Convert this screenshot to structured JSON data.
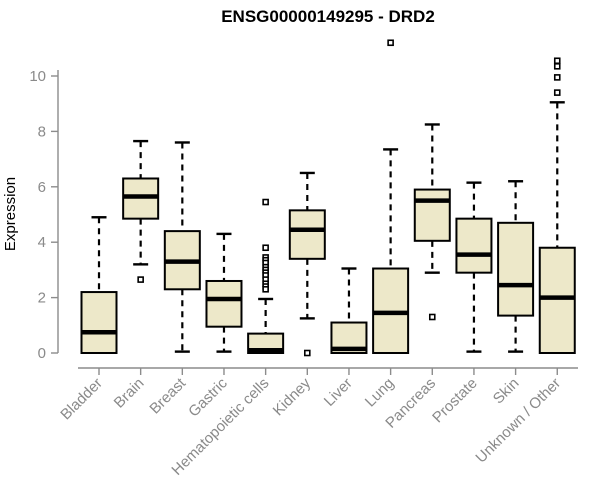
{
  "chart_data": {
    "type": "boxplot",
    "title": "ENSG00000149295 - DRD2",
    "ylabel": "Expression",
    "xlabel": "",
    "ylim": [
      0,
      11.2
    ],
    "yticks": [
      0,
      2,
      4,
      6,
      8,
      10
    ],
    "grid": false,
    "legend": "none",
    "categories": [
      "Bladder",
      "Brain",
      "Breast",
      "Gastric",
      "Hematopoietic cells",
      "Kidney",
      "Liver",
      "Lung",
      "Pancreas",
      "Prostate",
      "Skin",
      "Unknown / Other"
    ],
    "boxes": [
      {
        "category": "Bladder",
        "min": 0,
        "q1": 0,
        "median": 0.75,
        "q3": 2.2,
        "max": 4.9,
        "outliers": []
      },
      {
        "category": "Brain",
        "min": 3.2,
        "q1": 4.85,
        "median": 5.65,
        "q3": 6.3,
        "max": 7.65,
        "outliers": [
          2.65
        ]
      },
      {
        "category": "Breast",
        "min": 0.05,
        "q1": 2.3,
        "median": 3.3,
        "q3": 4.4,
        "max": 7.6,
        "outliers": []
      },
      {
        "category": "Gastric",
        "min": 0.05,
        "q1": 0.95,
        "median": 1.95,
        "q3": 2.6,
        "max": 4.3,
        "outliers": []
      },
      {
        "category": "Hematopoietic cells",
        "min": 0,
        "q1": 0,
        "median": 0.1,
        "q3": 0.7,
        "max": 1.95,
        "outliers": [
          5.45,
          3.8,
          3.45,
          3.35,
          3.25,
          3.1,
          3.0,
          2.9,
          2.8,
          2.65,
          2.5,
          2.4,
          2.3
        ]
      },
      {
        "category": "Kidney",
        "min": 1.25,
        "q1": 3.4,
        "median": 4.45,
        "q3": 5.15,
        "max": 6.5,
        "outliers": [
          0
        ]
      },
      {
        "category": "Liver",
        "min": 0,
        "q1": 0,
        "median": 0.15,
        "q3": 1.1,
        "max": 3.05,
        "outliers": []
      },
      {
        "category": "Lung",
        "min": 0,
        "q1": 0,
        "median": 1.45,
        "q3": 3.05,
        "max": 7.35,
        "outliers": [
          11.2
        ]
      },
      {
        "category": "Pancreas",
        "min": 2.9,
        "q1": 4.05,
        "median": 5.5,
        "q3": 5.9,
        "max": 8.25,
        "outliers": [
          1.3
        ]
      },
      {
        "category": "Prostate",
        "min": 0.05,
        "q1": 2.9,
        "median": 3.55,
        "q3": 4.85,
        "max": 6.15,
        "outliers": []
      },
      {
        "category": "Skin",
        "min": 0.05,
        "q1": 1.35,
        "median": 2.45,
        "q3": 4.7,
        "max": 6.2,
        "outliers": []
      },
      {
        "category": "Unknown / Other",
        "min": 0,
        "q1": 0,
        "median": 2.0,
        "q3": 3.8,
        "max": 9.05,
        "outliers": [
          10.55,
          10.35,
          9.95,
          9.4
        ]
      }
    ],
    "colors": {
      "box_fill": "#EDE8C9",
      "box_border": "#000000",
      "median": "#000000",
      "whisker": "#000000",
      "outlier_stroke": "#000000",
      "outlier_fill": "#FFFFFF",
      "axis": "#8C8C8C",
      "tick_label": "#8A8A8A",
      "title": "#000000",
      "background": "#FFFFFF"
    }
  }
}
